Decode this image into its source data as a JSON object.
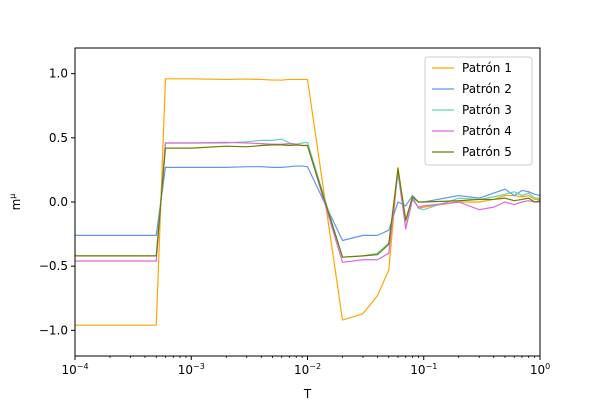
{
  "chart_data": {
    "type": "line",
    "xscale": "log",
    "xlabel": "T",
    "ylabel": "m^μ",
    "ylabel_base": "m",
    "ylabel_sup": "μ",
    "xlim": [
      0.0001,
      1
    ],
    "ylim": [
      -1.2,
      1.2
    ],
    "grid": false,
    "legend_position": "top-right",
    "x_ticks": [
      {
        "value": 0.0001,
        "base": "10",
        "exp": "−4"
      },
      {
        "value": 0.001,
        "base": "10",
        "exp": "−3"
      },
      {
        "value": 0.01,
        "base": "10",
        "exp": "−2"
      },
      {
        "value": 0.1,
        "base": "10",
        "exp": "−1"
      },
      {
        "value": 1,
        "base": "10",
        "exp": "0"
      }
    ],
    "y_ticks": [
      {
        "value": -1.0,
        "label": "−1.0"
      },
      {
        "value": -0.5,
        "label": "−0.5"
      },
      {
        "value": 0.0,
        "label": "0.0"
      },
      {
        "value": 0.5,
        "label": "0.5"
      },
      {
        "value": 1.0,
        "label": "1.0"
      }
    ],
    "x": [
      0.0001,
      0.0005,
      0.0006,
      0.001,
      0.002,
      0.003,
      0.004,
      0.005,
      0.006,
      0.007,
      0.008,
      0.009,
      0.01,
      0.02,
      0.03,
      0.04,
      0.05,
      0.06,
      0.07,
      0.08,
      0.09,
      0.1,
      0.2,
      0.3,
      0.4,
      0.5,
      0.6,
      0.7,
      0.8,
      0.9,
      1.0
    ],
    "series": [
      {
        "name": "Patrón 1",
        "color": "#ffa500",
        "values": [
          -0.96,
          -0.96,
          0.96,
          0.96,
          0.955,
          0.958,
          0.955,
          0.95,
          0.95,
          0.955,
          0.955,
          0.955,
          0.955,
          -0.92,
          -0.87,
          -0.73,
          -0.53,
          0.27,
          -0.15,
          0.04,
          -0.05,
          -0.04,
          0.0,
          0.0,
          0.02,
          0.05,
          0.05,
          0.04,
          0.05,
          0.02,
          0.02
        ]
      },
      {
        "name": "Patrón 2",
        "color": "#6495ed",
        "values": [
          -0.26,
          -0.26,
          0.27,
          0.27,
          0.27,
          0.275,
          0.275,
          0.27,
          0.27,
          0.275,
          0.28,
          0.28,
          0.275,
          -0.3,
          -0.26,
          -0.26,
          -0.22,
          0.0,
          -0.03,
          0.05,
          0.0,
          0.0,
          0.05,
          0.03,
          0.07,
          0.1,
          0.05,
          0.09,
          0.08,
          0.06,
          0.05
        ]
      },
      {
        "name": "Patrón 3",
        "color": "#5fd7b0",
        "values": [
          -0.42,
          -0.42,
          0.46,
          0.46,
          0.46,
          0.47,
          0.48,
          0.48,
          0.49,
          0.46,
          0.45,
          0.46,
          0.465,
          -0.43,
          -0.42,
          -0.4,
          -0.32,
          0.22,
          -0.2,
          0.04,
          -0.05,
          -0.06,
          0.03,
          0.02,
          0.04,
          0.06,
          0.08,
          0.05,
          0.07,
          0.03,
          0.03
        ]
      },
      {
        "name": "Patrón 4",
        "color": "#e066e0",
        "values": [
          -0.46,
          -0.46,
          0.46,
          0.46,
          0.465,
          0.46,
          0.455,
          0.45,
          0.45,
          0.455,
          0.45,
          0.44,
          0.44,
          -0.47,
          -0.45,
          -0.45,
          -0.4,
          0.25,
          -0.21,
          0.02,
          -0.04,
          -0.03,
          0.0,
          -0.06,
          -0.04,
          0.0,
          -0.02,
          0.0,
          0.01,
          0.0,
          0.0
        ]
      },
      {
        "name": "Patrón 5",
        "color": "#6b7f00",
        "values": [
          -0.42,
          -0.42,
          0.42,
          0.42,
          0.435,
          0.43,
          0.44,
          0.445,
          0.445,
          0.44,
          0.445,
          0.44,
          0.44,
          -0.43,
          -0.42,
          -0.41,
          -0.33,
          0.26,
          -0.14,
          0.04,
          0.0,
          0.0,
          0.01,
          0.02,
          0.02,
          0.03,
          0.01,
          0.02,
          0.03,
          0.0,
          0.01
        ]
      }
    ]
  }
}
